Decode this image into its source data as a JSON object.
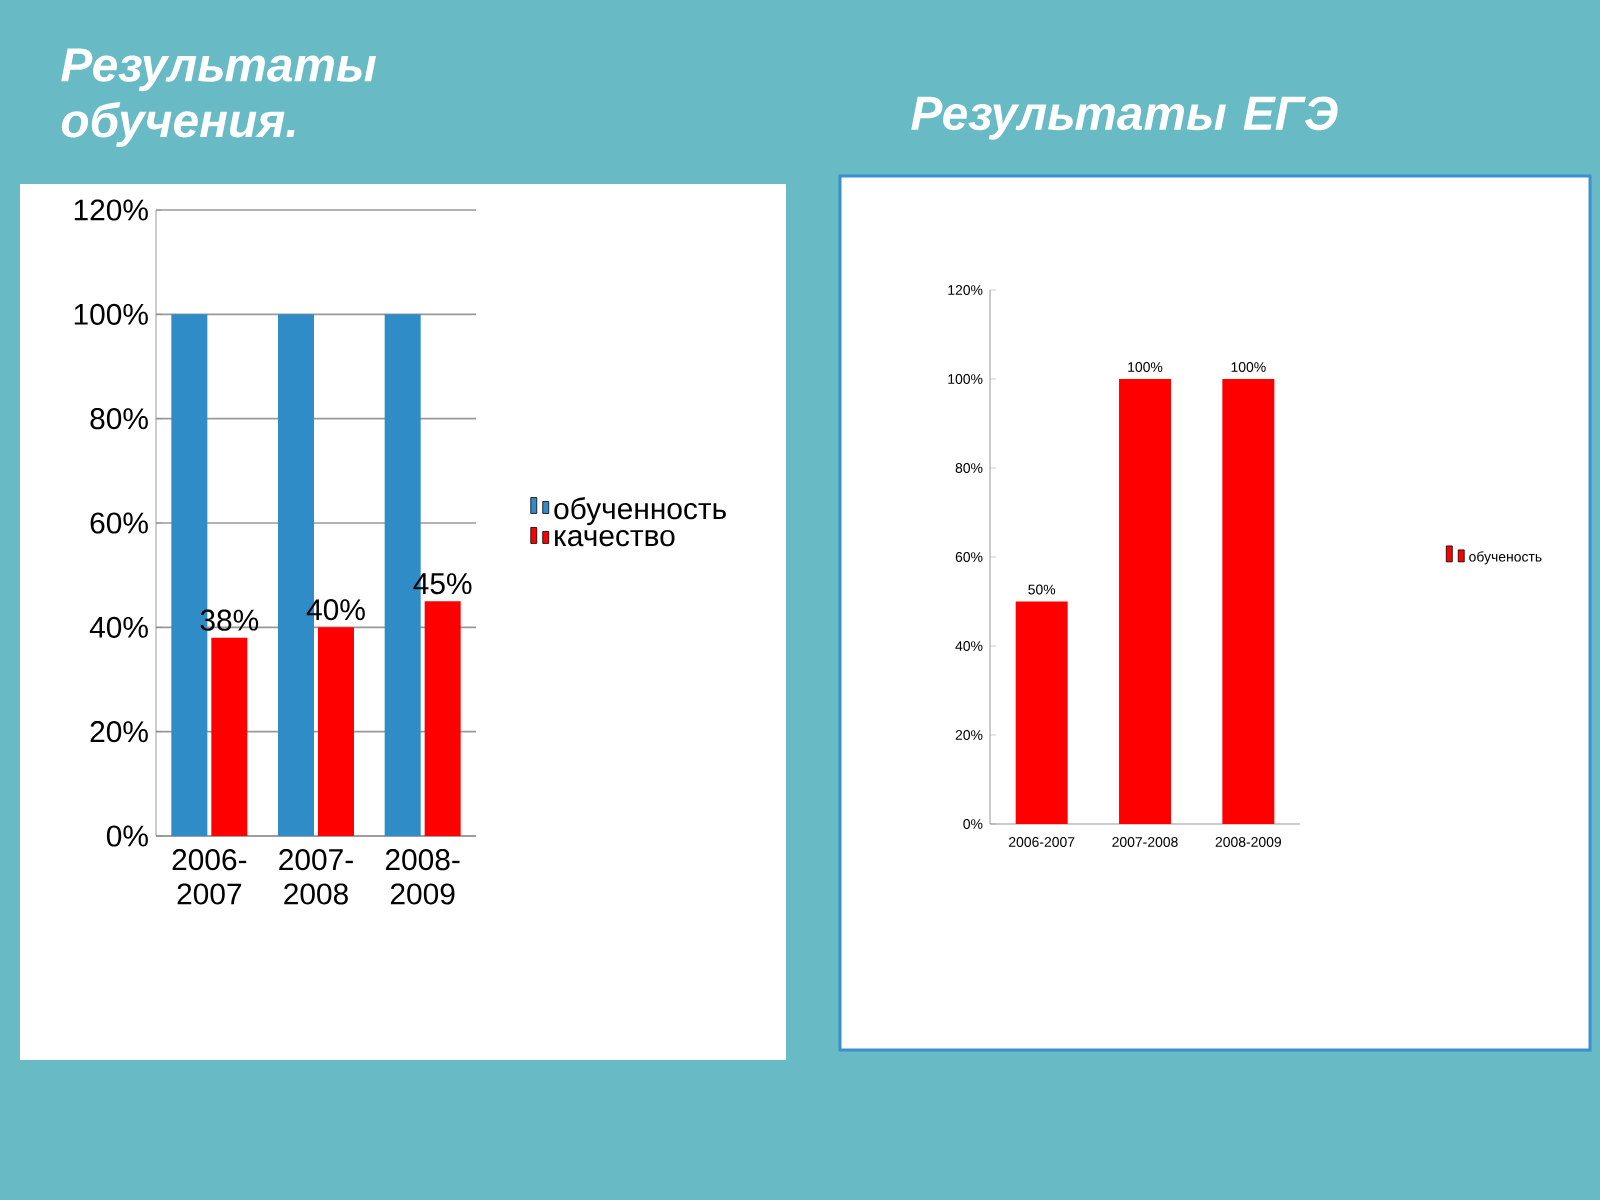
{
  "chart_data": [
    {
      "type": "bar",
      "title": "Результаты обучения.",
      "categories": [
        "2006-2007",
        "2007-2008",
        "2008-2009"
      ],
      "series": [
        {
          "name": "обученность",
          "color": "#2f8cc6",
          "values": [
            100,
            100,
            100
          ]
        },
        {
          "name": "качество",
          "color": "#ff0000",
          "values": [
            38,
            40,
            45
          ],
          "value_labels": [
            "38%",
            "40%",
            "45%"
          ]
        }
      ],
      "ylim": [
        0,
        120
      ],
      "yticks": [
        {
          "value": 0,
          "label": "0%"
        },
        {
          "value": 20,
          "label": "20%"
        },
        {
          "value": 40,
          "label": "40%"
        },
        {
          "value": 60,
          "label": "60%"
        },
        {
          "value": 80,
          "label": "80%"
        },
        {
          "value": 100,
          "label": "100%"
        },
        {
          "value": 120,
          "label": "120%"
        }
      ],
      "grid": "y",
      "legend": "right"
    },
    {
      "type": "bar",
      "title": "Результаты ЕГЭ",
      "categories": [
        "2006-2007",
        "2007-2008",
        "2008-2009"
      ],
      "series": [
        {
          "name": "обученость",
          "color": "#ff0000",
          "values": [
            50,
            100,
            100
          ],
          "value_labels": [
            "50%",
            "100%",
            "100%"
          ]
        }
      ],
      "ylim": [
        0,
        120
      ],
      "yticks": [
        {
          "value": 0,
          "label": "0%"
        },
        {
          "value": 20,
          "label": "20%"
        },
        {
          "value": 40,
          "label": "40%"
        },
        {
          "value": 60,
          "label": "60%"
        },
        {
          "value": 80,
          "label": "80%"
        },
        {
          "value": 100,
          "label": "100%"
        },
        {
          "value": 120,
          "label": "120%"
        }
      ],
      "grid": false,
      "legend": "right"
    }
  ]
}
